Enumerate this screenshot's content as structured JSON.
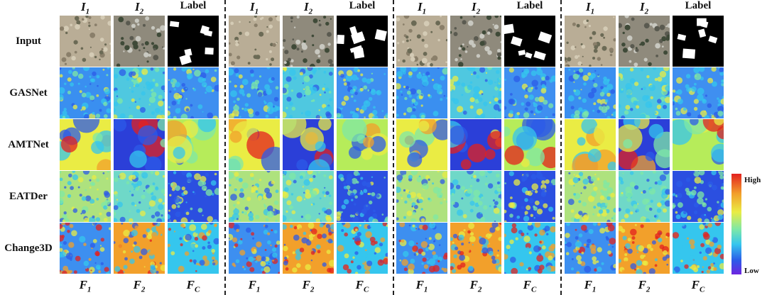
{
  "rows": {
    "input": "Input",
    "gasnet": "GASNet",
    "amtnet": "AMTNet",
    "eatder": "EATDer",
    "change3d": "Change3D"
  },
  "headers": {
    "i1": "I",
    "i1_sub": "1",
    "i2": "I",
    "i2_sub": "2",
    "label": "Label"
  },
  "footers": {
    "f1": "F",
    "f1_sub": "1",
    "f2": "F",
    "f2_sub": "2",
    "fc": "F",
    "fc_sub": "C"
  },
  "colorbar": {
    "high": "High",
    "low": "Low"
  },
  "colors": {
    "high": "#e3221f",
    "mid": "#eaec44",
    "low_cyan": "#35c6ee",
    "low": "#2c5be8",
    "min": "#6e24e0"
  },
  "group_count": 4
}
